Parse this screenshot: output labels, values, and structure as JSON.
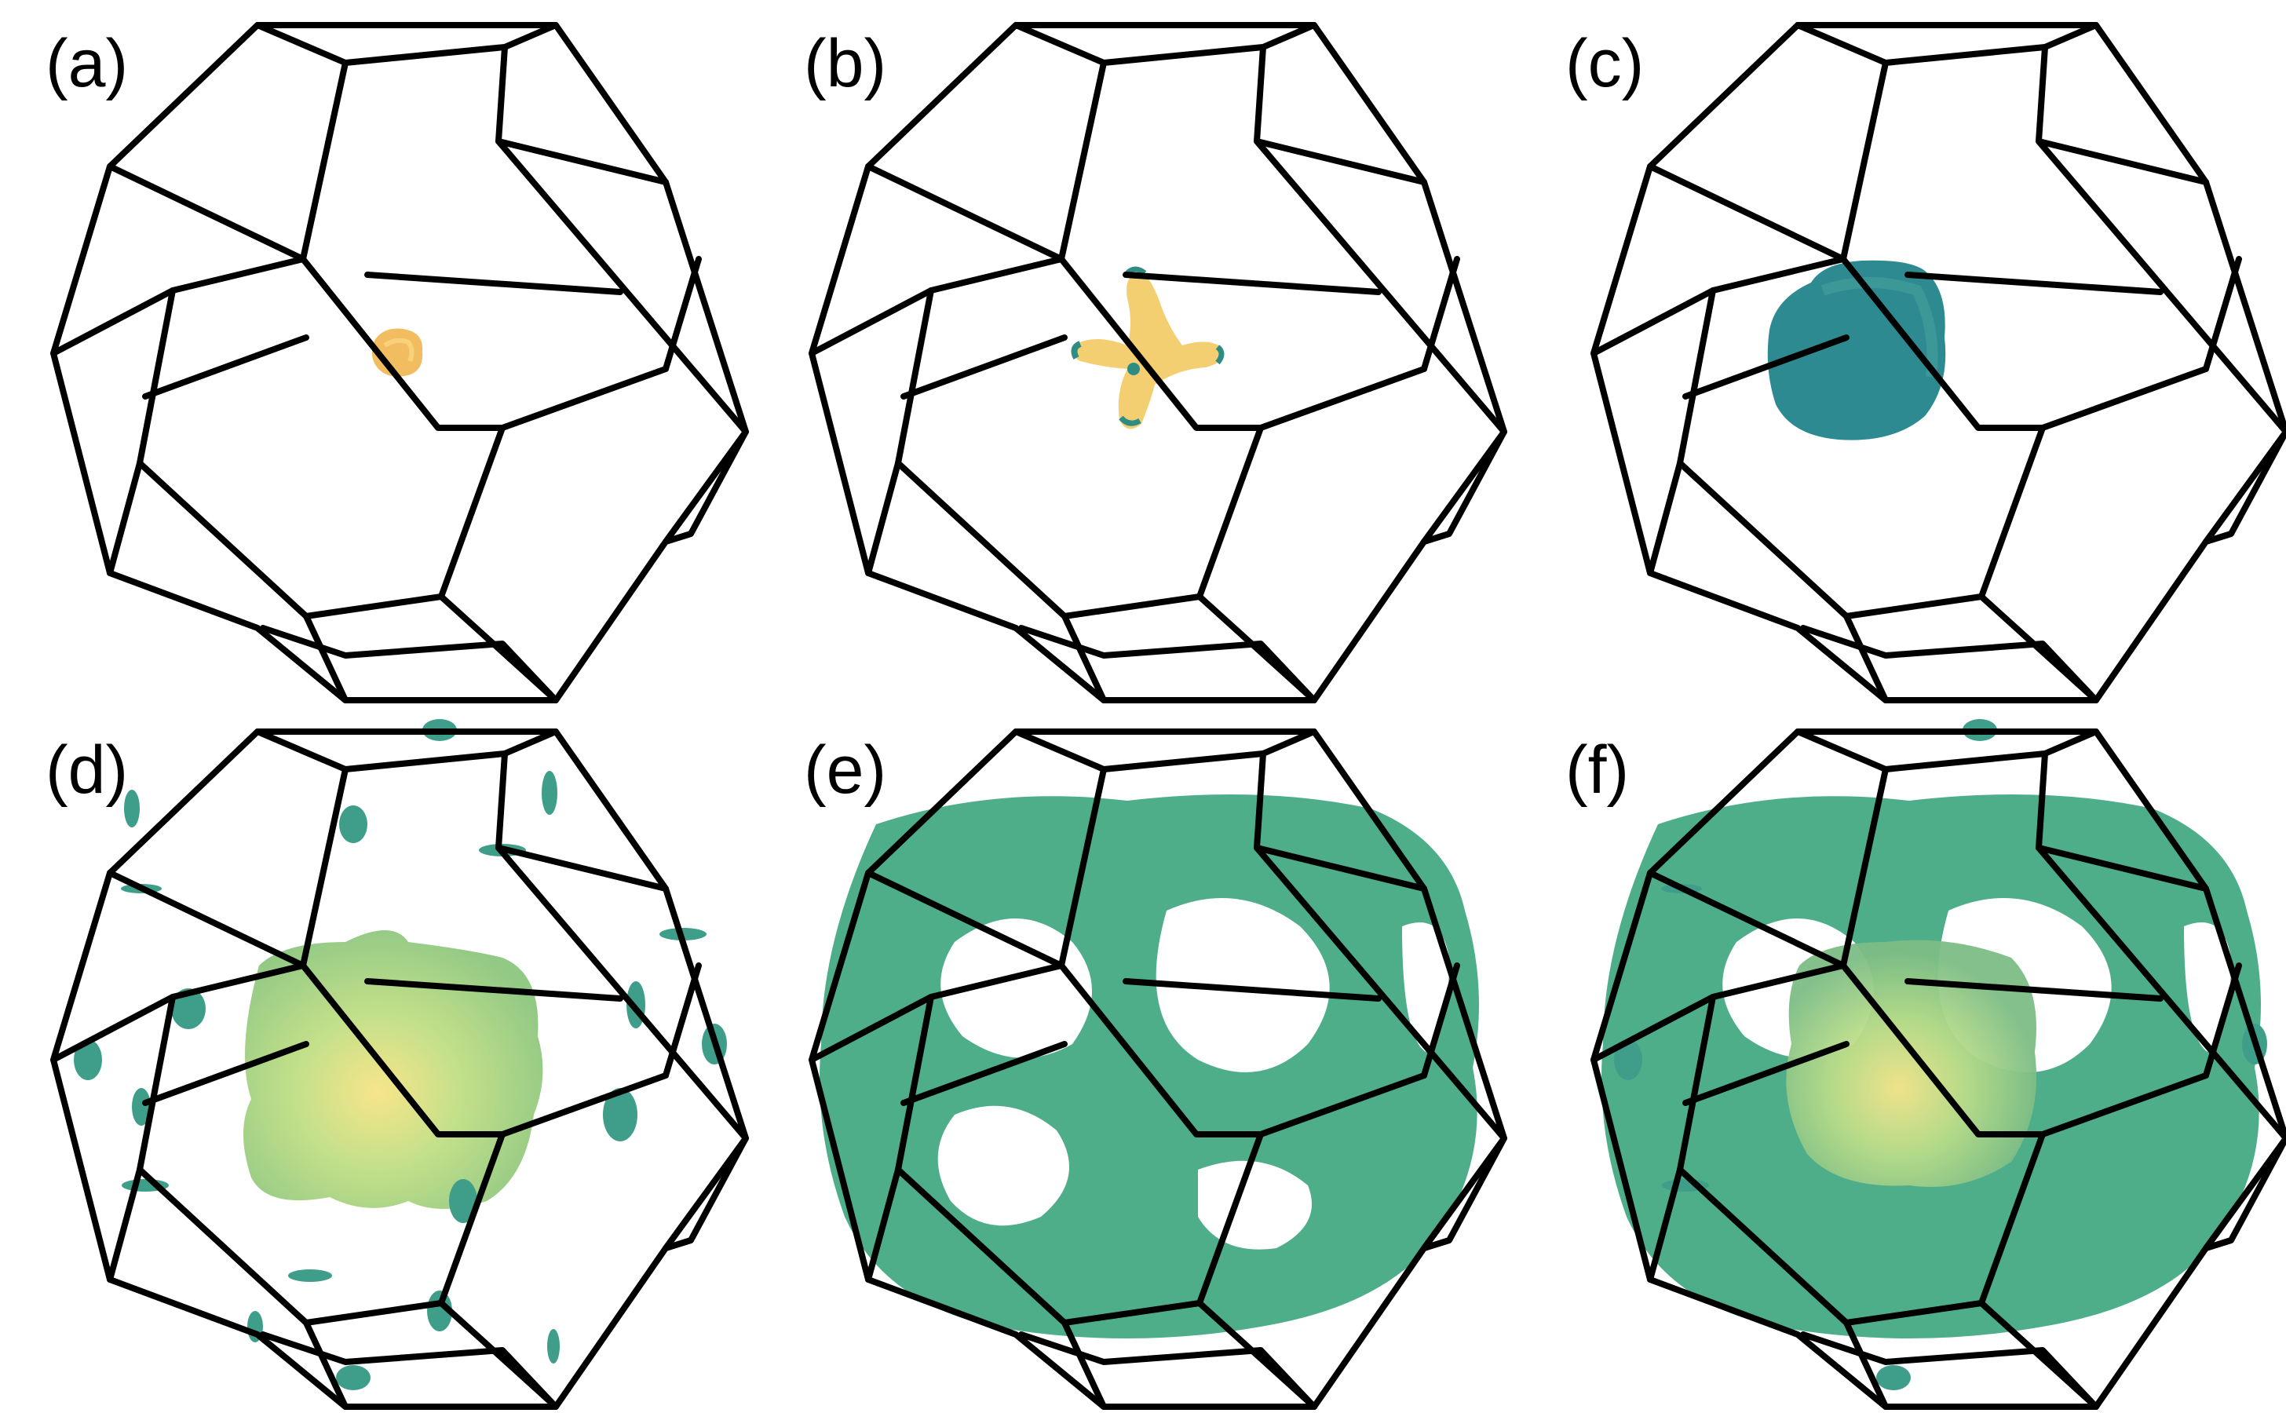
{
  "figure": {
    "panels": [
      {
        "id": "a",
        "label": "(a)",
        "fermi_surface": "small orange blob at zone center",
        "palette": [
          "#f0b85a",
          "#f6d06e"
        ]
      },
      {
        "id": "b",
        "label": "(b)",
        "fermi_surface": "four-armed star at zone center",
        "palette": [
          "#f3cf72",
          "#2f8c84"
        ]
      },
      {
        "id": "c",
        "label": "(c)",
        "fermi_surface": "teal rounded pocket at zone center",
        "palette": [
          "#2e8a91",
          "#3f9b98"
        ]
      },
      {
        "id": "d",
        "label": "(d)",
        "fermi_surface": "green-yellow cube pocket with small teal pockets at zone faces",
        "palette": [
          "#9fd08a",
          "#f7e58a",
          "#3f9e8a"
        ]
      },
      {
        "id": "e",
        "label": "(e)",
        "fermi_surface": "large green sheet with holes at face centers",
        "palette": [
          "#4fae8a",
          "#3d9c84"
        ]
      },
      {
        "id": "f",
        "label": "(f)",
        "fermi_surface": "combination of (d) and (e)",
        "palette": [
          "#4fae8a",
          "#f7e58a"
        ]
      }
    ],
    "colors": {
      "edges": "#000000",
      "background": "#ffffff"
    }
  }
}
